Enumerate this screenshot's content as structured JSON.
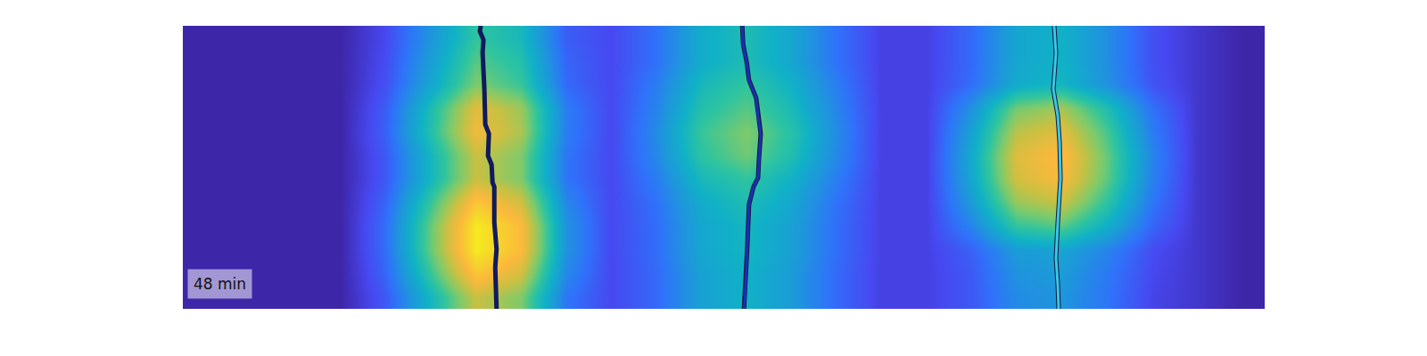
{
  "chart_data": {
    "type": "heatmap",
    "annotations": [
      "48 min"
    ],
    "xlim": [
      0,
      24
    ],
    "ylim": [
      12,
      0
    ],
    "tick_labels": false,
    "grid": false,
    "cells": {
      "x": [
        0.5,
        1.5,
        2.5,
        3.5,
        4.5,
        5.5,
        6.5,
        7.5,
        8.5,
        9.5,
        10.5,
        11.5,
        12.5,
        13.5,
        14.5,
        15.5,
        16.5,
        17.5,
        18.5,
        19.5,
        20.5,
        21.5,
        22.5,
        23.5
      ],
      "y": [
        0.5,
        1.5,
        2.5,
        3.5,
        4.5,
        5.5,
        6.5,
        7.5,
        8.5,
        9.5,
        10.5,
        11.5
      ],
      "zlim": [
        0,
        1
      ],
      "z": [
        [
          0,
          0,
          0,
          0,
          0.1,
          0.3,
          0.5,
          0.43,
          0.15,
          0.1,
          0.2,
          0.38,
          0.45,
          0.36,
          0.2,
          0.08,
          0.08,
          0.18,
          0.36,
          0.4,
          0.28,
          0.12,
          0.05,
          0
        ],
        [
          0,
          0,
          0,
          0,
          0.11,
          0.33,
          0.55,
          0.47,
          0.17,
          0.1,
          0.2,
          0.38,
          0.45,
          0.36,
          0.2,
          0.08,
          0.08,
          0.18,
          0.36,
          0.4,
          0.28,
          0.12,
          0.05,
          0
        ],
        [
          0,
          0,
          0,
          0,
          0.12,
          0.36,
          0.6,
          0.51,
          0.18,
          0.1,
          0.23,
          0.43,
          0.5,
          0.4,
          0.23,
          0.08,
          0.08,
          0.19,
          0.38,
          0.42,
          0.29,
          0.13,
          0.05,
          0
        ],
        [
          0,
          0,
          0,
          0,
          0.15,
          0.45,
          0.75,
          0.64,
          0.23,
          0.1,
          0.25,
          0.47,
          0.55,
          0.44,
          0.25,
          0.08,
          0.08,
          0.29,
          0.59,
          0.65,
          0.46,
          0.2,
          0.05,
          0
        ],
        [
          0,
          0,
          0,
          0,
          0.16,
          0.47,
          0.78,
          0.66,
          0.23,
          0.1,
          0.27,
          0.51,
          0.6,
          0.48,
          0.27,
          0.08,
          0.08,
          0.34,
          0.68,
          0.75,
          0.53,
          0.23,
          0.05,
          0
        ],
        [
          0,
          0,
          0,
          0,
          0.14,
          0.42,
          0.7,
          0.6,
          0.21,
          0.1,
          0.26,
          0.49,
          0.58,
          0.46,
          0.26,
          0.08,
          0.08,
          0.37,
          0.74,
          0.82,
          0.57,
          0.25,
          0.05,
          0
        ],
        [
          0,
          0,
          0,
          0,
          0.14,
          0.42,
          0.7,
          0.6,
          0.21,
          0.1,
          0.23,
          0.43,
          0.5,
          0.4,
          0.23,
          0.08,
          0.08,
          0.36,
          0.72,
          0.8,
          0.56,
          0.24,
          0.05,
          0
        ],
        [
          0,
          0,
          0,
          0,
          0.17,
          0.51,
          0.85,
          0.72,
          0.26,
          0.1,
          0.2,
          0.38,
          0.45,
          0.36,
          0.2,
          0.08,
          0.08,
          0.32,
          0.63,
          0.7,
          0.49,
          0.21,
          0.05,
          0
        ],
        [
          0,
          0,
          0,
          0,
          0.19,
          0.57,
          0.95,
          0.81,
          0.29,
          0.1,
          0.19,
          0.36,
          0.42,
          0.34,
          0.19,
          0.08,
          0.08,
          0.25,
          0.5,
          0.55,
          0.39,
          0.17,
          0.05,
          0
        ],
        [
          0,
          0,
          0,
          0,
          0.19,
          0.57,
          0.95,
          0.81,
          0.29,
          0.1,
          0.19,
          0.36,
          0.42,
          0.34,
          0.19,
          0.08,
          0.08,
          0.16,
          0.32,
          0.35,
          0.25,
          0.11,
          0.05,
          0
        ],
        [
          0,
          0,
          0,
          0,
          0.17,
          0.51,
          0.85,
          0.72,
          0.26,
          0.1,
          0.18,
          0.34,
          0.4,
          0.32,
          0.18,
          0.08,
          0.08,
          0.14,
          0.29,
          0.32,
          0.22,
          0.1,
          0.05,
          0
        ],
        [
          0,
          0,
          0,
          0,
          0.14,
          0.42,
          0.7,
          0.6,
          0.21,
          0.1,
          0.18,
          0.34,
          0.4,
          0.32,
          0.18,
          0.08,
          0.08,
          0.14,
          0.27,
          0.3,
          0.21,
          0.09,
          0.05,
          0
        ]
      ]
    },
    "series": [
      {
        "type": "line",
        "color": "#0d1a6e",
        "x": [
          6.61,
          6.59,
          6.67,
          6.65,
          6.69,
          6.71,
          6.79,
          6.77,
          6.85,
          6.87,
          6.91,
          6.91,
          6.96,
          6.93,
          6.96
        ],
        "y": [
          0,
          0.23,
          0.6,
          1.13,
          2.68,
          4.19,
          4.57,
          5.51,
          5.89,
          6.64,
          6.83,
          8.34,
          9.47,
          10.23,
          12
        ]
      },
      {
        "type": "line",
        "color": "#1a2fb5",
        "x": [
          12.41,
          12.43,
          12.51,
          12.56,
          12.72,
          12.76,
          12.82,
          12.78,
          12.76,
          12.66,
          12.56,
          12.52,
          12.48,
          12.45
        ],
        "y": [
          0,
          0.79,
          1.55,
          2.3,
          3.06,
          3.81,
          4.57,
          5.7,
          6.45,
          6.83,
          7.58,
          9.47,
          11.36,
          12
        ]
      },
      {
        "type": "line",
        "color": "#3cc8e6",
        "x": [
          19.33,
          19.37,
          19.31,
          19.41,
          19.45,
          19.47,
          19.41,
          19.37,
          19.41,
          19.43
        ],
        "y": [
          0,
          1.17,
          2.68,
          3.81,
          4.94,
          6.45,
          8.34,
          9.85,
          10.98,
          12
        ]
      }
    ]
  }
}
